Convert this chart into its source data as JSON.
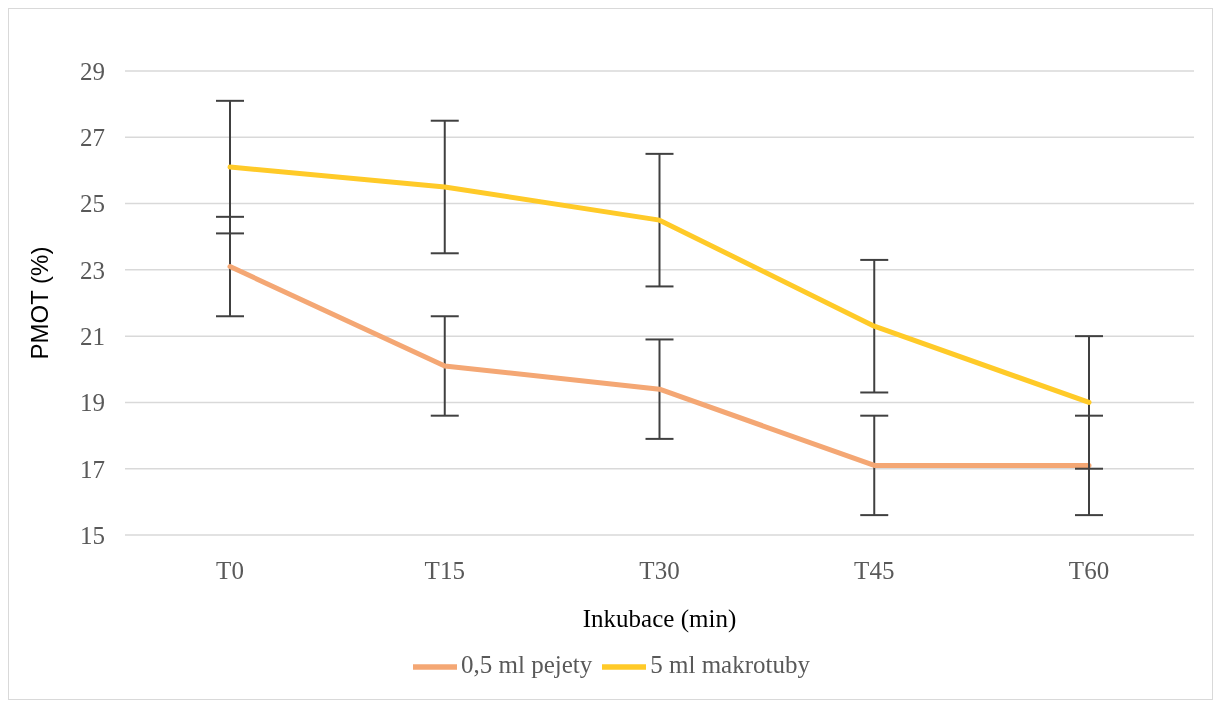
{
  "chart_data": {
    "type": "line",
    "xlabel": "Inkubace  (min)",
    "ylabel": "PMOT (%)",
    "categories": [
      "T0",
      "T15",
      "T30",
      "T45",
      "T60"
    ],
    "series": [
      {
        "name": "0,5 ml pejety",
        "color": "#f4a774",
        "values": [
          23.1,
          20.1,
          19.4,
          17.1,
          17.1
        ],
        "errors": [
          1.5,
          1.5,
          1.5,
          1.5,
          1.5
        ]
      },
      {
        "name": "5 ml makrotuby",
        "color": "#ffca28",
        "values": [
          26.1,
          25.5,
          24.5,
          21.3,
          19.0
        ],
        "errors": [
          2,
          2,
          2,
          2,
          2
        ]
      }
    ],
    "ylim": [
      15,
      29
    ],
    "yticks": [
      15,
      17,
      19,
      21,
      23,
      25,
      27,
      29
    ],
    "grid": "y",
    "legend": "bottom",
    "marker": "none",
    "line_style": "solid"
  }
}
